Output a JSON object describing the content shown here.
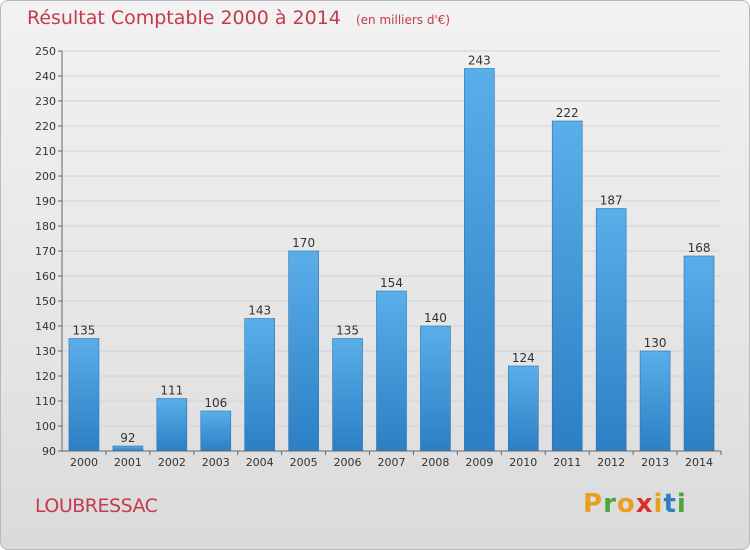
{
  "title": "Résultat Comptable 2000 à 2014",
  "unit": "(en milliers d'€)",
  "commune": "LOUBRESSAC",
  "brand": "Proxiti",
  "colors": {
    "title": "#c43a4e",
    "bar_light": "#5aaee9",
    "bar_dark": "#2c7fc3",
    "logo": [
      "#e8a11f",
      "#4aa83a",
      "#e8a11f",
      "#d8302a",
      "#e8a11f",
      "#2f7fc0",
      "#4aa83a"
    ]
  },
  "chart_data": {
    "type": "bar",
    "categories": [
      "2000",
      "2001",
      "2002",
      "2003",
      "2004",
      "2005",
      "2006",
      "2007",
      "2008",
      "2009",
      "2010",
      "2011",
      "2012",
      "2013",
      "2014"
    ],
    "values": [
      135,
      92,
      111,
      106,
      143,
      170,
      135,
      154,
      140,
      243,
      124,
      222,
      187,
      130,
      168
    ],
    "ylim": [
      90,
      250
    ],
    "yticks": [
      90,
      100,
      110,
      120,
      130,
      140,
      150,
      160,
      170,
      180,
      190,
      200,
      210,
      220,
      230,
      240,
      250
    ],
    "grid": true,
    "data_labels": true
  }
}
